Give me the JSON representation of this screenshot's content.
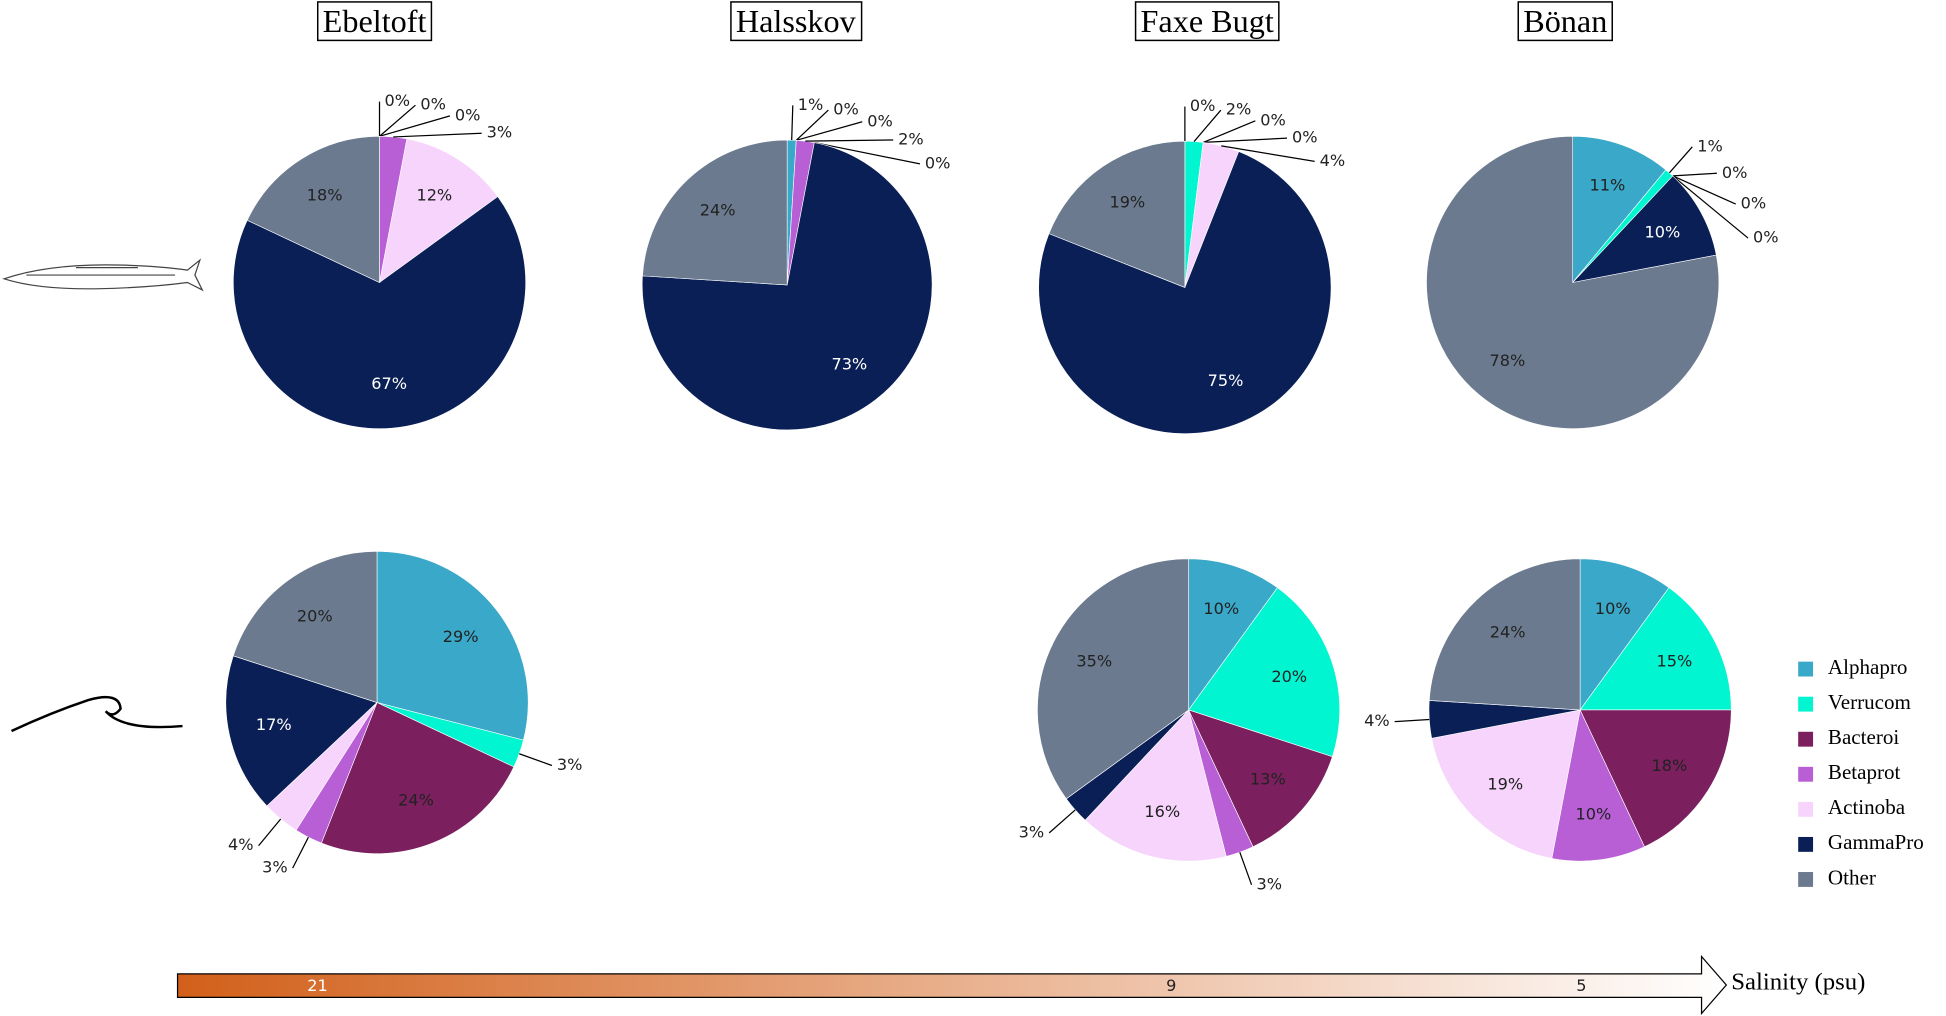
{
  "chart_data": [
    {
      "type": "pie",
      "title": "Ebeltoft",
      "values": [
        0,
        0,
        0,
        3,
        12,
        67,
        18
      ],
      "value_labels": [
        "0%",
        "0%",
        "0%",
        "3%",
        "12%",
        "67%",
        "18%"
      ]
    },
    {
      "type": "pie",
      "title": "Halsskov",
      "values": [
        1,
        0,
        0,
        2,
        0,
        73,
        24
      ],
      "value_labels": [
        "1%",
        "0%",
        "0%",
        "2%",
        "0%",
        "73%",
        "24%"
      ]
    },
    {
      "type": "pie",
      "title": "Faxe Bugt",
      "values": [
        0,
        2,
        0,
        0,
        4,
        75,
        19
      ],
      "value_labels": [
        "0%",
        "2%",
        "0%",
        "0%",
        "4%",
        "75%",
        "19%"
      ]
    },
    {
      "type": "pie",
      "title": "Bönan",
      "values": [
        11,
        1,
        0,
        0,
        0,
        10,
        78
      ],
      "value_labels": [
        "11%",
        "1%",
        "0%",
        "0%",
        "0%",
        "10%",
        "78%"
      ]
    },
    {
      "type": "pie",
      "values": [
        29,
        3,
        24,
        3,
        4,
        17,
        20
      ],
      "value_labels": [
        "29%",
        "3%",
        "24%",
        "3%",
        "4%",
        "17%",
        "20%"
      ]
    },
    {
      "type": "pie",
      "values": [
        10,
        20,
        13,
        3,
        16,
        3,
        35
      ],
      "value_labels": [
        "10%",
        "20%",
        "13%",
        "3%",
        "16%",
        "3%",
        "35%"
      ]
    },
    {
      "type": "pie",
      "values": [
        10,
        15,
        18,
        10,
        19,
        4,
        24
      ],
      "value_labels": [
        "10%",
        "15%",
        "18%",
        "10%",
        "19%",
        "4%",
        "24%"
      ]
    }
  ],
  "legend": {
    "categories": [
      "Alphapro",
      "Verrucom",
      "Bacteroi",
      "Betaprot",
      "Actinoba",
      "GammaPro",
      "Other"
    ],
    "colors": [
      "#3aa8c8",
      "#00f5d0",
      "#7b1f5e",
      "#b85fd6",
      "#f6d4fb",
      "#0a1f55",
      "#6b7a8f"
    ]
  },
  "salinity": {
    "label": "Salinity (psu)",
    "ticks": [
      21,
      9,
      5
    ]
  }
}
